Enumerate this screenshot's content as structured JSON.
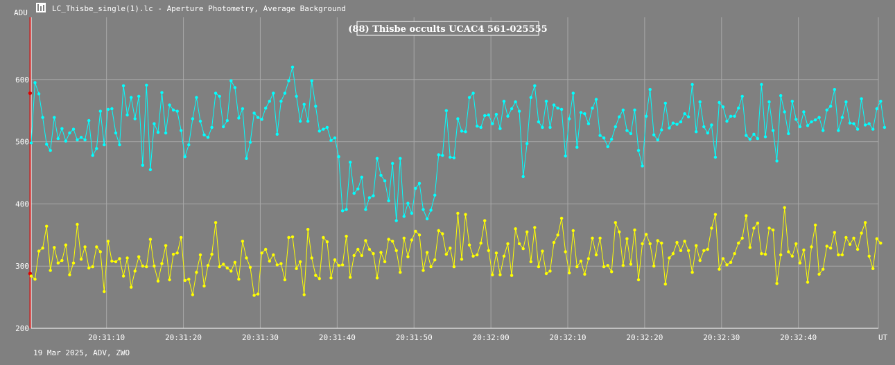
{
  "window": {
    "title": "LC_Thisbe_single(1).lc - Aperture Photometry, Average Background",
    "icon": "lightcurve-app-icon"
  },
  "footer": {
    "text": "19 Mar 2025, ADV, ZWO"
  },
  "chart_data": {
    "type": "line",
    "title": "(88) Thisbe occults UCAC4 561-025555",
    "ylabel": "ADU",
    "xlabel": "UT",
    "ylim": [
      200,
      700
    ],
    "yticks": [
      200,
      300,
      400,
      500,
      600
    ],
    "xticks": [
      "20:31:10",
      "20:31:20",
      "20:31:30",
      "20:31:40",
      "20:31:50",
      "20:32:00",
      "20:32:10",
      "20:32:20",
      "20:32:30",
      "20:32:40"
    ],
    "xticks_seconds": [
      10,
      20,
      30,
      40,
      50,
      60,
      70,
      80,
      90,
      100
    ],
    "x_range_seconds": [
      0.2,
      110.4
    ],
    "x_start_time": "20:31:00",
    "grid": true,
    "colors": {
      "background": "#808080",
      "grid": "#a8a8a8",
      "series1": "#00ffff",
      "series2": "#ffff00",
      "marker": "#e00000"
    },
    "markers": [
      {
        "name": "",
        "x_seconds": 0.1,
        "values": [
          578,
          288
        ]
      }
    ],
    "series": [
      {
        "name": "",
        "color": "#00ffff",
        "x_start_seconds": 0.2,
        "x_step_seconds": 0.5,
        "values": [
          498,
          595,
          577,
          539,
          496,
          486,
          539,
          505,
          521,
          501,
          514,
          520,
          503,
          507,
          503,
          534,
          478,
          489,
          549,
          495,
          552,
          553,
          514,
          495,
          590,
          543,
          571,
          537,
          573,
          462,
          591,
          455,
          529,
          515,
          579,
          514,
          559,
          551,
          549,
          518,
          476,
          495,
          537,
          571,
          533,
          511,
          507,
          523,
          578,
          573,
          524,
          534,
          598,
          587,
          538,
          553,
          473,
          499,
          546,
          539,
          536,
          554,
          565,
          578,
          512,
          565,
          578,
          598,
          620,
          573,
          533,
          560,
          533,
          598,
          557,
          517,
          520,
          523,
          502,
          506,
          476,
          389,
          391,
          467,
          417,
          424,
          443,
          391,
          410,
          413,
          473,
          446,
          437,
          405,
          465,
          373,
          473,
          380,
          401,
          385,
          425,
          433,
          391,
          376,
          390,
          414,
          479,
          478,
          550,
          475,
          474,
          537,
          517,
          516,
          571,
          578,
          525,
          523,
          542,
          543,
          529,
          544,
          521,
          565,
          541,
          553,
          564,
          549,
          444,
          497,
          571,
          590,
          532,
          523,
          565,
          523,
          559,
          554,
          552,
          477,
          537,
          578,
          491,
          547,
          545,
          529,
          554,
          568,
          510,
          506,
          492,
          504,
          524,
          540,
          551,
          518,
          513,
          551,
          486,
          461,
          541,
          584,
          511,
          503,
          519,
          562,
          522,
          530,
          528,
          532,
          545,
          540,
          592,
          516,
          564,
          524,
          514,
          527,
          475,
          563,
          556,
          533,
          541,
          541,
          554,
          573,
          510,
          504,
          512,
          505,
          592,
          508,
          564,
          518,
          469,
          574,
          548,
          513,
          565,
          536,
          524,
          548,
          526,
          532,
          535,
          539,
          518,
          551,
          557,
          584,
          518,
          539,
          564,
          530,
          529,
          520,
          569,
          527,
          529,
          520,
          553,
          565,
          523
        ]
      },
      {
        "name": "",
        "color": "#ffff00",
        "x_start_seconds": 0.2,
        "x_step_seconds": 0.5,
        "values": [
          284,
          279,
          324,
          329,
          364,
          293,
          330,
          305,
          309,
          334,
          286,
          305,
          367,
          311,
          331,
          297,
          299,
          331,
          323,
          259,
          340,
          308,
          307,
          312,
          284,
          313,
          266,
          292,
          315,
          300,
          299,
          343,
          300,
          276,
          304,
          333,
          278,
          319,
          321,
          346,
          277,
          279,
          254,
          290,
          318,
          268,
          301,
          319,
          370,
          299,
          303,
          297,
          292,
          306,
          279,
          340,
          313,
          298,
          253,
          255,
          321,
          327,
          308,
          318,
          302,
          304,
          278,
          346,
          347,
          296,
          307,
          254,
          359,
          313,
          285,
          280,
          346,
          339,
          281,
          310,
          301,
          302,
          348,
          282,
          317,
          327,
          317,
          341,
          327,
          320,
          281,
          322,
          307,
          343,
          340,
          325,
          290,
          345,
          315,
          342,
          356,
          350,
          293,
          322,
          299,
          310,
          357,
          352,
          319,
          329,
          299,
          385,
          311,
          383,
          334,
          316,
          318,
          337,
          373,
          325,
          286,
          321,
          286,
          316,
          336,
          285,
          360,
          336,
          328,
          355,
          307,
          362,
          299,
          324,
          288,
          292,
          338,
          350,
          377,
          323,
          289,
          357,
          299,
          308,
          287,
          312,
          345,
          318,
          345,
          299,
          301,
          291,
          370,
          355,
          301,
          344,
          303,
          358,
          278,
          336,
          351,
          336,
          300,
          341,
          337,
          271,
          313,
          320,
          338,
          325,
          340,
          325,
          290,
          333,
          309,
          325,
          327,
          361,
          383,
          295,
          312,
          302,
          306,
          320,
          337,
          345,
          381,
          330,
          361,
          369,
          320,
          319,
          361,
          358,
          272,
          318,
          394,
          323,
          316,
          336,
          305,
          326,
          274,
          331,
          366,
          287,
          295,
          332,
          329,
          354,
          318,
          318,
          346,
          335,
          345,
          327,
          353,
          370,
          316,
          296,
          344,
          337
        ]
      }
    ]
  }
}
